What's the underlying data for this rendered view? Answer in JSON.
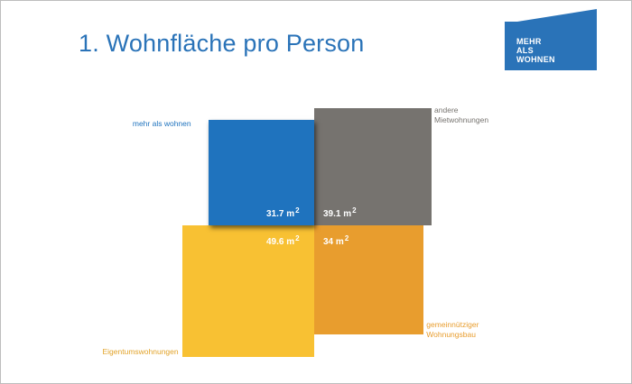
{
  "title": "1. Wohnfläche pro Person",
  "logo": {
    "lines": [
      "MEHR",
      "ALS",
      "WOHNEN"
    ],
    "color": "#2a73b8"
  },
  "chart_data": {
    "type": "area",
    "unit": "m",
    "unit_sup": "2",
    "series": [
      {
        "name": "mehr als wohnen",
        "value": 31.7,
        "color": "#1f73be",
        "label_lines": [
          "mehr als wohnen"
        ],
        "label_color": "#1f73be"
      },
      {
        "name": "andere Mietwohnungen",
        "value": 39.1,
        "color": "#76736f",
        "label_lines": [
          "andere",
          "Mietwohnungen"
        ],
        "label_color": "#76736f"
      },
      {
        "name": "Eigentumswohnungen",
        "value": 49.6,
        "color": "#f8c133",
        "label_lines": [
          "Eigentumswohnungen"
        ],
        "label_color": "#e2a32a"
      },
      {
        "name": "gemeinnütziger Wohnungsbau",
        "value": 34,
        "color": "#e89d2e",
        "label_lines": [
          "gemeinnütziger",
          "Wohnungsbau"
        ],
        "label_color": "#e89d2e"
      }
    ]
  }
}
